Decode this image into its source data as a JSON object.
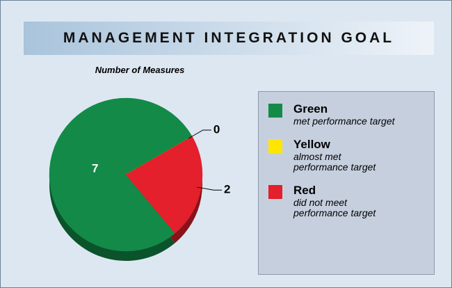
{
  "chart_data": {
    "type": "pie",
    "title": "MANAGEMENT INTEGRATION GOAL",
    "subtitle": "Number of Measures",
    "categories": [
      "Green",
      "Yellow",
      "Red"
    ],
    "descriptions": [
      "met performance target",
      "almost met performance target",
      "did not meet performance target"
    ],
    "values": [
      7,
      0,
      2
    ],
    "colors": [
      "#138a48",
      "#ffe600",
      "#e3202b"
    ]
  }
}
